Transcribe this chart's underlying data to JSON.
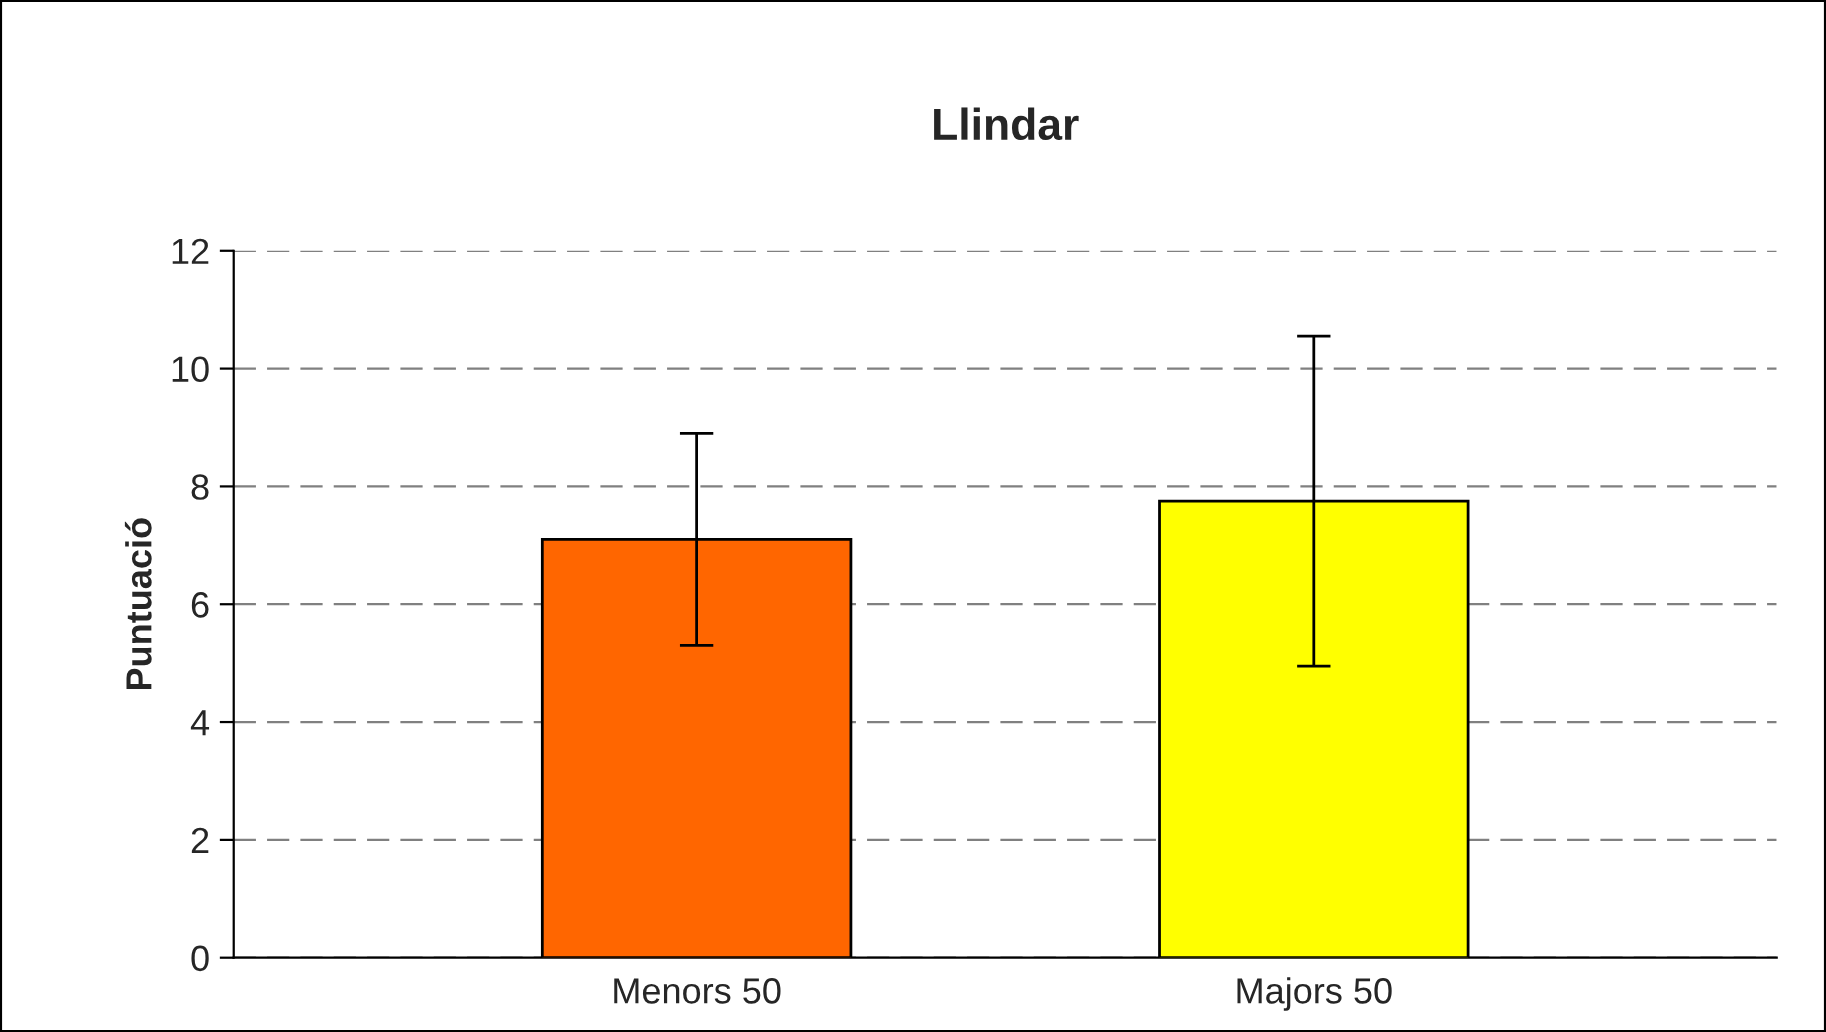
{
  "chart_data": {
    "type": "bar",
    "title": "Llindar",
    "ylabel": "Puntuació",
    "categories": [
      "Menors 50",
      "Majors 50"
    ],
    "values": [
      7.1,
      7.75
    ],
    "colors": [
      "#ff6600",
      "#ffff00"
    ],
    "errors": [
      1.8,
      2.8
    ],
    "ylim": [
      0,
      12
    ],
    "yticks": [
      0,
      2,
      4,
      6,
      8,
      10,
      12
    ],
    "grid": "y",
    "legend": false
  }
}
